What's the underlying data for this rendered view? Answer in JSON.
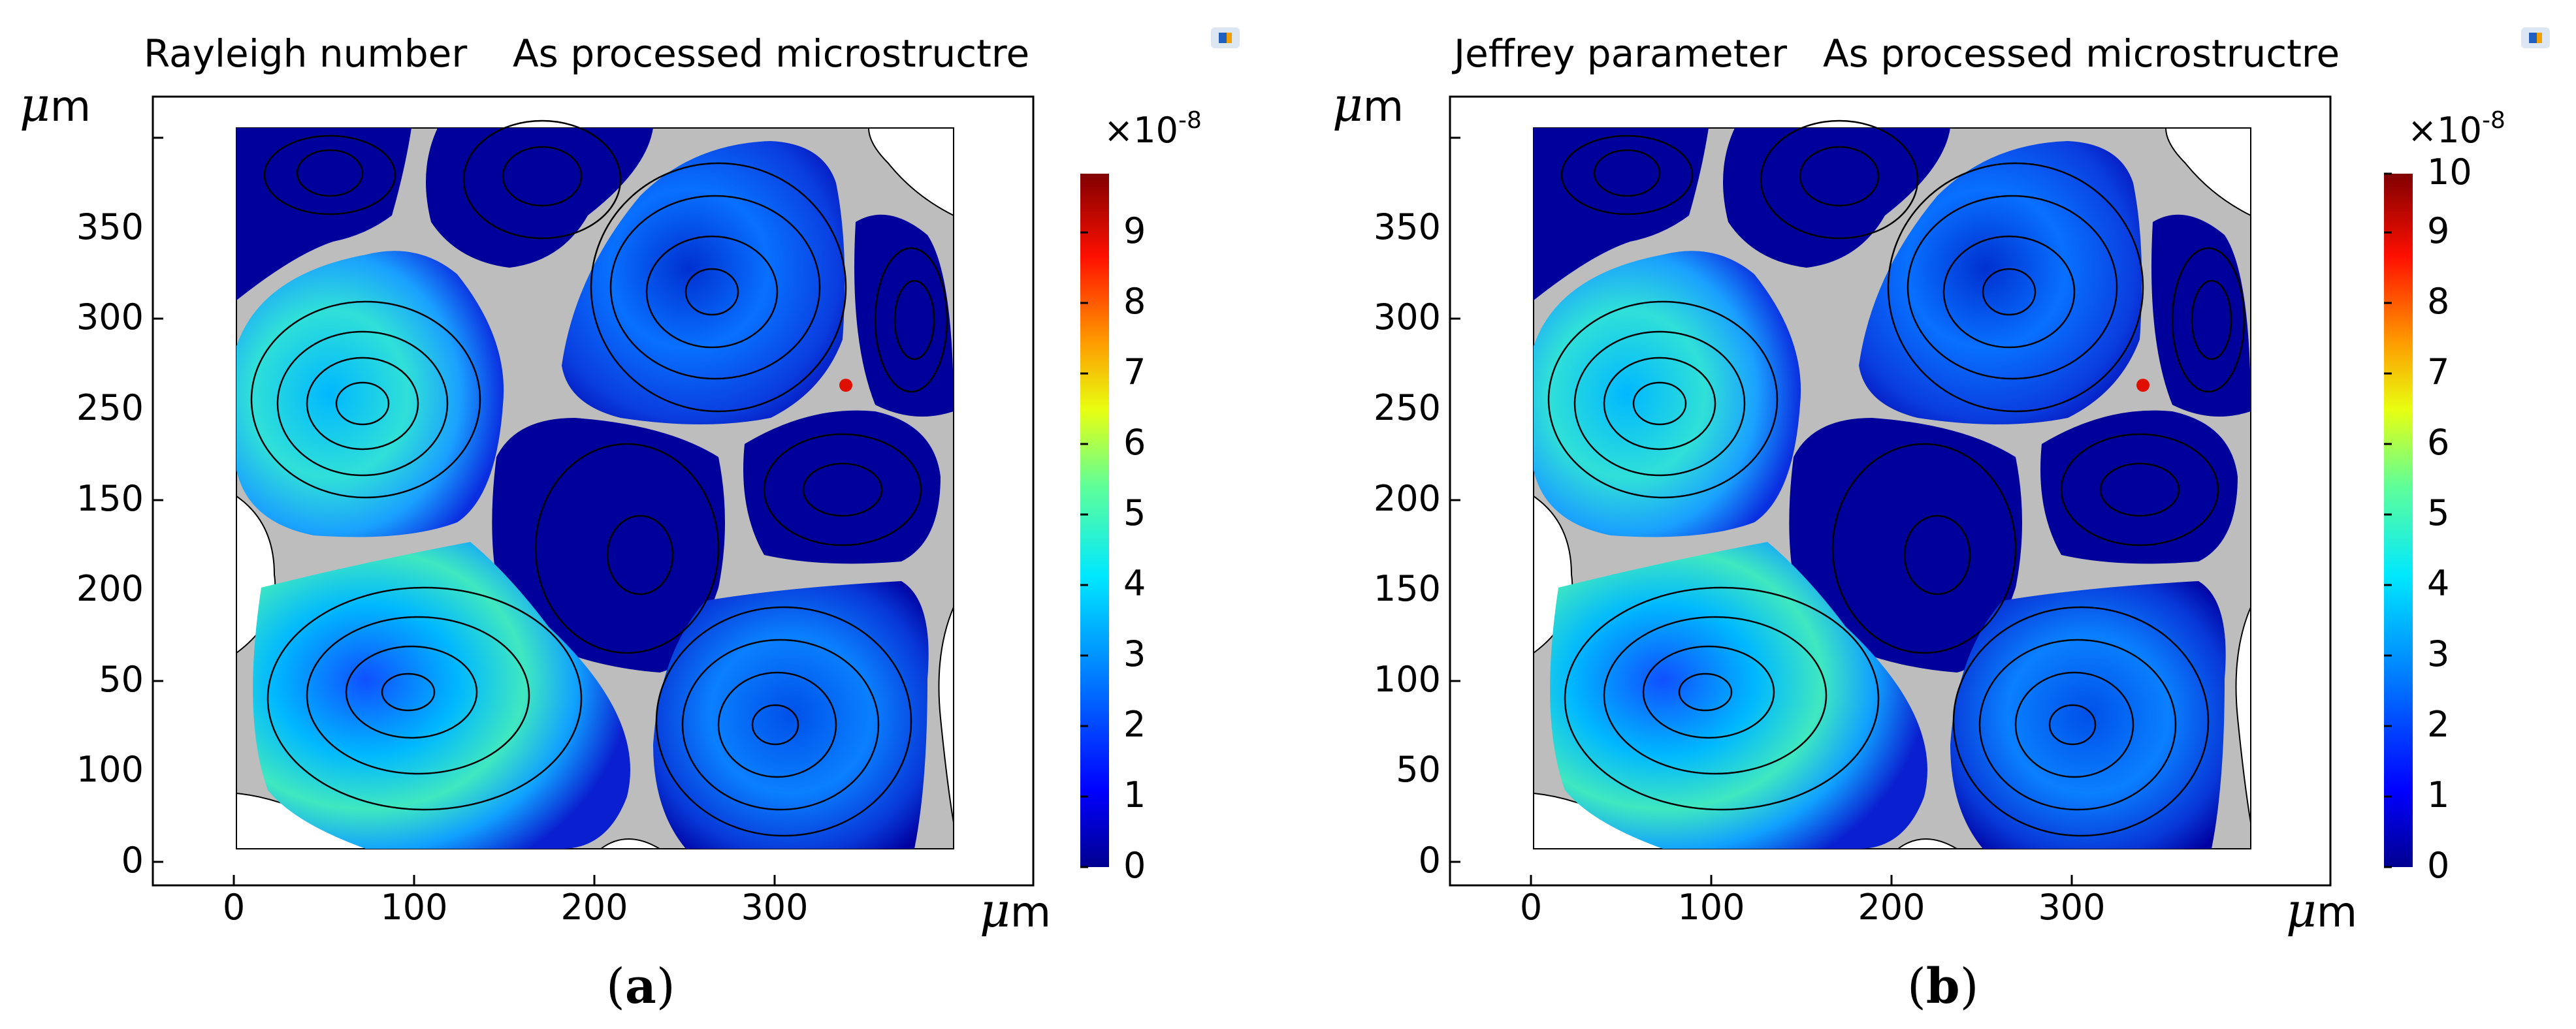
{
  "panels": [
    {
      "id": "a",
      "title_left": "Rayleigh number",
      "title_right": "As processed microstructre",
      "y_unit": "μm",
      "x_unit": "μm",
      "x_ticks": [
        "0",
        "100",
        "200",
        "300"
      ],
      "y_ticks": [
        "0",
        "50",
        "100",
        "150",
        "200",
        "250",
        "300",
        "350"
      ],
      "colorbar": {
        "multiplier": "×10",
        "exponent": "-8",
        "ticks": [
          "0",
          "1",
          "2",
          "3",
          "4",
          "5",
          "6",
          "7",
          "8",
          "9"
        ]
      },
      "caption_letter": "a"
    },
    {
      "id": "b",
      "title_left": "Jeffrey parameter",
      "title_right": "As processed microstructre",
      "y_unit": "μm",
      "x_unit": "μm",
      "x_ticks": [
        "0",
        "100",
        "200",
        "300"
      ],
      "y_ticks": [
        "0",
        "50",
        "100",
        "150",
        "200",
        "250",
        "300",
        "350"
      ],
      "colorbar": {
        "multiplier": "×10",
        "exponent": "-8",
        "ticks": [
          "0",
          "1",
          "2",
          "3",
          "4",
          "5",
          "6",
          "7",
          "8",
          "9",
          "10"
        ]
      },
      "caption_letter": "b"
    }
  ],
  "colors": {
    "background": "#ffffff",
    "matrix": "#bdbdbd",
    "low": "#00008f",
    "mid": "#00c8ff",
    "high": "#800000"
  }
}
